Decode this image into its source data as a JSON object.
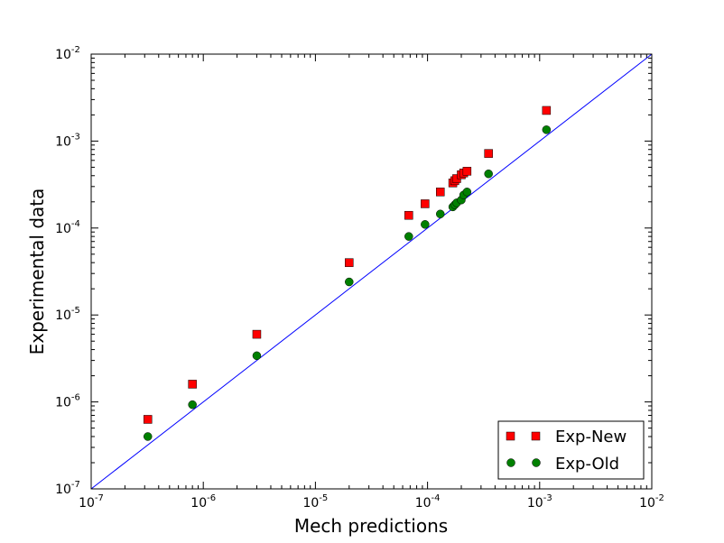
{
  "chart_data": {
    "type": "scatter",
    "xlabel": "Mech predictions",
    "ylabel": "Experimental data",
    "xscale": "log",
    "yscale": "log",
    "xlim": [
      1e-07,
      0.01
    ],
    "ylim": [
      1e-07,
      0.01
    ],
    "x_ticks": [
      {
        "base": "10",
        "exp": "-7",
        "value": 1e-07
      },
      {
        "base": "10",
        "exp": "-6",
        "value": 1e-06
      },
      {
        "base": "10",
        "exp": "-5",
        "value": 1e-05
      },
      {
        "base": "10",
        "exp": "-4",
        "value": 0.0001
      },
      {
        "base": "10",
        "exp": "-3",
        "value": 0.001
      },
      {
        "base": "10",
        "exp": "-2",
        "value": 0.01
      }
    ],
    "y_ticks": [
      {
        "base": "10",
        "exp": "-7",
        "value": 1e-07
      },
      {
        "base": "10",
        "exp": "-6",
        "value": 1e-06
      },
      {
        "base": "10",
        "exp": "-5",
        "value": 1e-05
      },
      {
        "base": "10",
        "exp": "-4",
        "value": 0.0001
      },
      {
        "base": "10",
        "exp": "-3",
        "value": 0.001
      },
      {
        "base": "10",
        "exp": "-2",
        "value": 0.01
      }
    ],
    "grid": false,
    "legend_position": "bottom-right",
    "reference_line": {
      "x": [
        1e-07,
        0.01
      ],
      "y": [
        1e-07,
        0.01
      ],
      "color": "#0000ff"
    },
    "series": [
      {
        "name": "Exp-New",
        "marker": "square",
        "color": "#ff0000",
        "points": [
          {
            "x": 3.2e-07,
            "y": 6.3e-07
          },
          {
            "x": 8e-07,
            "y": 1.6e-06
          },
          {
            "x": 3e-06,
            "y": 6e-06
          },
          {
            "x": 2e-05,
            "y": 4e-05
          },
          {
            "x": 6.8e-05,
            "y": 0.00014
          },
          {
            "x": 9.5e-05,
            "y": 0.00019
          },
          {
            "x": 0.00013,
            "y": 0.00026
          },
          {
            "x": 0.000168,
            "y": 0.00033
          },
          {
            "x": 0.000175,
            "y": 0.00035
          },
          {
            "x": 0.000182,
            "y": 0.00037
          },
          {
            "x": 0.0002,
            "y": 0.00041
          },
          {
            "x": 0.00021,
            "y": 0.00043
          },
          {
            "x": 0.000225,
            "y": 0.00045
          },
          {
            "x": 0.00035,
            "y": 0.00072
          },
          {
            "x": 0.00115,
            "y": 0.00225
          }
        ]
      },
      {
        "name": "Exp-Old",
        "marker": "circle",
        "color": "#008000",
        "points": [
          {
            "x": 3.2e-07,
            "y": 4e-07
          },
          {
            "x": 8e-07,
            "y": 9.3e-07
          },
          {
            "x": 3e-06,
            "y": 3.4e-06
          },
          {
            "x": 2e-05,
            "y": 2.4e-05
          },
          {
            "x": 6.8e-05,
            "y": 8e-05
          },
          {
            "x": 9.5e-05,
            "y": 0.00011
          },
          {
            "x": 0.00013,
            "y": 0.000145
          },
          {
            "x": 0.000168,
            "y": 0.000175
          },
          {
            "x": 0.000175,
            "y": 0.000185
          },
          {
            "x": 0.000182,
            "y": 0.000195
          },
          {
            "x": 0.0002,
            "y": 0.00021
          },
          {
            "x": 0.00021,
            "y": 0.00024
          },
          {
            "x": 0.000225,
            "y": 0.00026
          },
          {
            "x": 0.00035,
            "y": 0.00042
          },
          {
            "x": 0.00115,
            "y": 0.00135
          }
        ]
      }
    ]
  }
}
